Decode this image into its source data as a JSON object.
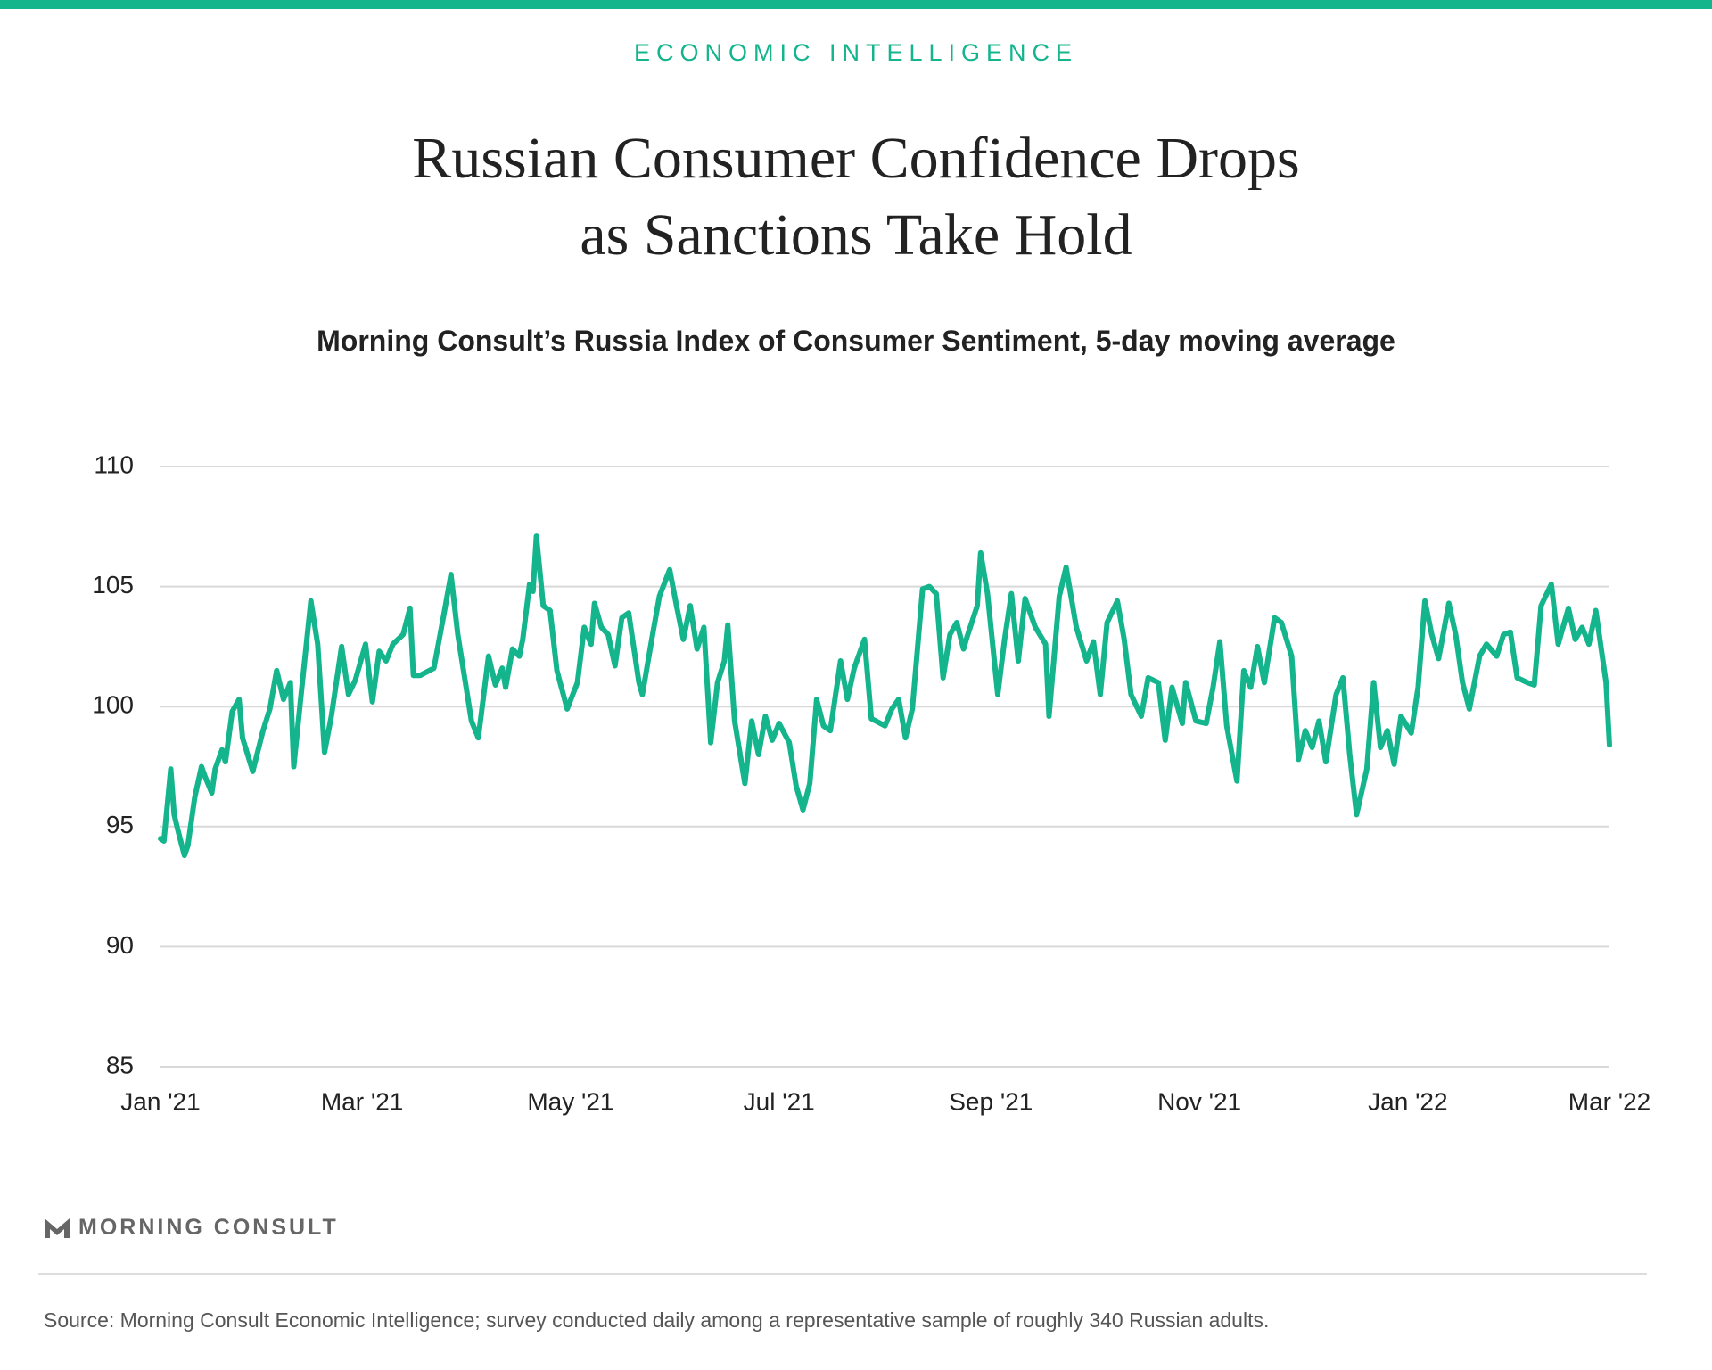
{
  "chart_data": {
    "type": "line",
    "header": "ECONOMIC INTELLIGENCE",
    "title": [
      "Russian Consumer Confidence Drops",
      "as Sanctions Take Hold"
    ],
    "subtitle": "Morning Consult’s Russia Index of Consumer Sentiment, 5-day moving average",
    "brand": "MORNING CONSULT",
    "source": "Source: Morning Consult Economic Intelligence; survey conducted daily among a representative sample of roughly 340 Russian adults.",
    "color": "#14b48c",
    "grid": true,
    "xlim": [
      0,
      424
    ],
    "xticks": [
      {
        "value": 0,
        "label": "Jan '21"
      },
      {
        "value": 59,
        "label": "Mar '21"
      },
      {
        "value": 120,
        "label": "May '21"
      },
      {
        "value": 181,
        "label": "Jul '21"
      },
      {
        "value": 243,
        "label": "Sep '21"
      },
      {
        "value": 304,
        "label": "Nov '21"
      },
      {
        "value": 365,
        "label": "Jan '22"
      },
      {
        "value": 424,
        "label": "Mar '22"
      }
    ],
    "ylim": [
      85,
      110
    ],
    "yticks": [
      85,
      90,
      95,
      100,
      105,
      110
    ],
    "x": [
      0,
      1,
      3,
      4,
      5,
      7,
      8,
      10,
      12,
      13,
      15,
      16,
      18,
      19,
      21,
      23,
      24,
      27,
      30,
      32,
      34,
      36,
      38,
      39,
      41,
      44,
      46,
      48,
      50,
      53,
      55,
      57,
      60,
      62,
      64,
      66,
      68,
      71,
      73,
      74,
      76,
      80,
      83,
      85,
      87,
      91,
      93,
      96,
      98,
      100,
      101,
      103,
      105,
      106,
      108,
      109,
      110,
      112,
      114,
      116,
      119,
      122,
      124,
      126,
      127,
      129,
      131,
      133,
      135,
      137,
      140,
      141,
      144,
      146,
      149,
      151,
      153,
      155,
      157,
      159,
      161,
      163,
      165,
      166,
      168,
      171,
      173,
      175,
      177,
      179,
      181,
      184,
      186,
      188,
      190,
      192,
      194,
      196,
      199,
      201,
      203,
      206,
      208,
      212,
      214,
      216,
      218,
      220,
      223,
      225,
      227,
      229,
      231,
      233,
      235,
      236,
      239,
      240,
      242,
      245,
      247,
      249,
      251,
      253,
      256,
      259,
      260,
      263,
      265,
      268,
      271,
      273,
      275,
      277,
      280,
      282,
      284,
      287,
      289,
      292,
      294,
      296,
      299,
      300,
      303,
      306,
      308,
      310,
      312,
      315,
      317,
      319,
      321,
      323,
      326,
      328,
      331,
      333,
      335,
      337,
      339,
      341,
      344,
      346,
      348,
      350,
      353,
      355,
      357,
      359,
      361,
      363,
      366,
      368,
      370,
      372,
      374,
      377,
      379,
      381,
      383,
      386,
      388,
      391,
      393,
      395,
      397,
      400,
      402,
      404,
      407,
      409,
      412,
      414,
      416,
      418,
      420,
      423,
      424
    ],
    "values": [
      94.5,
      94.4,
      97.4,
      95.5,
      94.9,
      93.8,
      94.2,
      96.2,
      97.5,
      97.1,
      96.4,
      97.4,
      98.2,
      97.7,
      99.8,
      100.3,
      98.7,
      97.3,
      99.0,
      99.9,
      101.5,
      100.3,
      101.0,
      97.5,
      100.3,
      104.4,
      102.6,
      98.1,
      99.6,
      102.5,
      100.5,
      101.1,
      102.6,
      100.2,
      102.3,
      101.9,
      102.6,
      103.0,
      104.1,
      101.3,
      101.3,
      101.6,
      103.9,
      105.5,
      103.0,
      99.4,
      98.7,
      102.1,
      100.9,
      101.6,
      100.8,
      102.4,
      102.1,
      102.8,
      105.1,
      104.8,
      107.1,
      104.2,
      104.0,
      101.5,
      99.9,
      101.0,
      103.3,
      102.6,
      104.3,
      103.3,
      103.0,
      101.7,
      103.7,
      103.9,
      101.0,
      100.5,
      103.0,
      104.6,
      105.7,
      104.2,
      102.8,
      104.2,
      102.4,
      103.3,
      98.5,
      101.0,
      101.9,
      103.4,
      99.4,
      96.8,
      99.4,
      98.0,
      99.6,
      98.6,
      99.3,
      98.5,
      96.7,
      95.7,
      96.8,
      100.3,
      99.2,
      99.0,
      101.9,
      100.3,
      101.6,
      102.8,
      99.5,
      99.2,
      99.9,
      100.3,
      98.7,
      99.9,
      104.9,
      105.0,
      104.7,
      101.2,
      103.0,
      103.5,
      102.4,
      102.9,
      104.2,
      106.4,
      104.7,
      100.5,
      102.8,
      104.7,
      101.9,
      104.5,
      103.3,
      102.6,
      99.6,
      104.6,
      105.8,
      103.3,
      101.9,
      102.7,
      100.5,
      103.5,
      104.4,
      102.8,
      100.5,
      99.6,
      101.2,
      101.0,
      98.6,
      100.8,
      99.3,
      101.0,
      99.4,
      99.3,
      100.8,
      102.7,
      99.2,
      96.9,
      101.5,
      100.8,
      102.5,
      101.0,
      103.7,
      103.5,
      102.1,
      97.8,
      99.0,
      98.3,
      99.4,
      97.7,
      100.5,
      101.2,
      98.0,
      95.5,
      97.4,
      101.0,
      98.3,
      99.0,
      97.6,
      99.6,
      98.9,
      100.8,
      104.4,
      103.0,
      102.0,
      104.3,
      103.0,
      101.0,
      99.9,
      102.1,
      102.6,
      102.1,
      103.0,
      103.1,
      101.2,
      101.0,
      100.9,
      104.2,
      105.1,
      102.6,
      104.1,
      102.8,
      103.3,
      102.6,
      104.0,
      101.0,
      98.4
    ]
  }
}
